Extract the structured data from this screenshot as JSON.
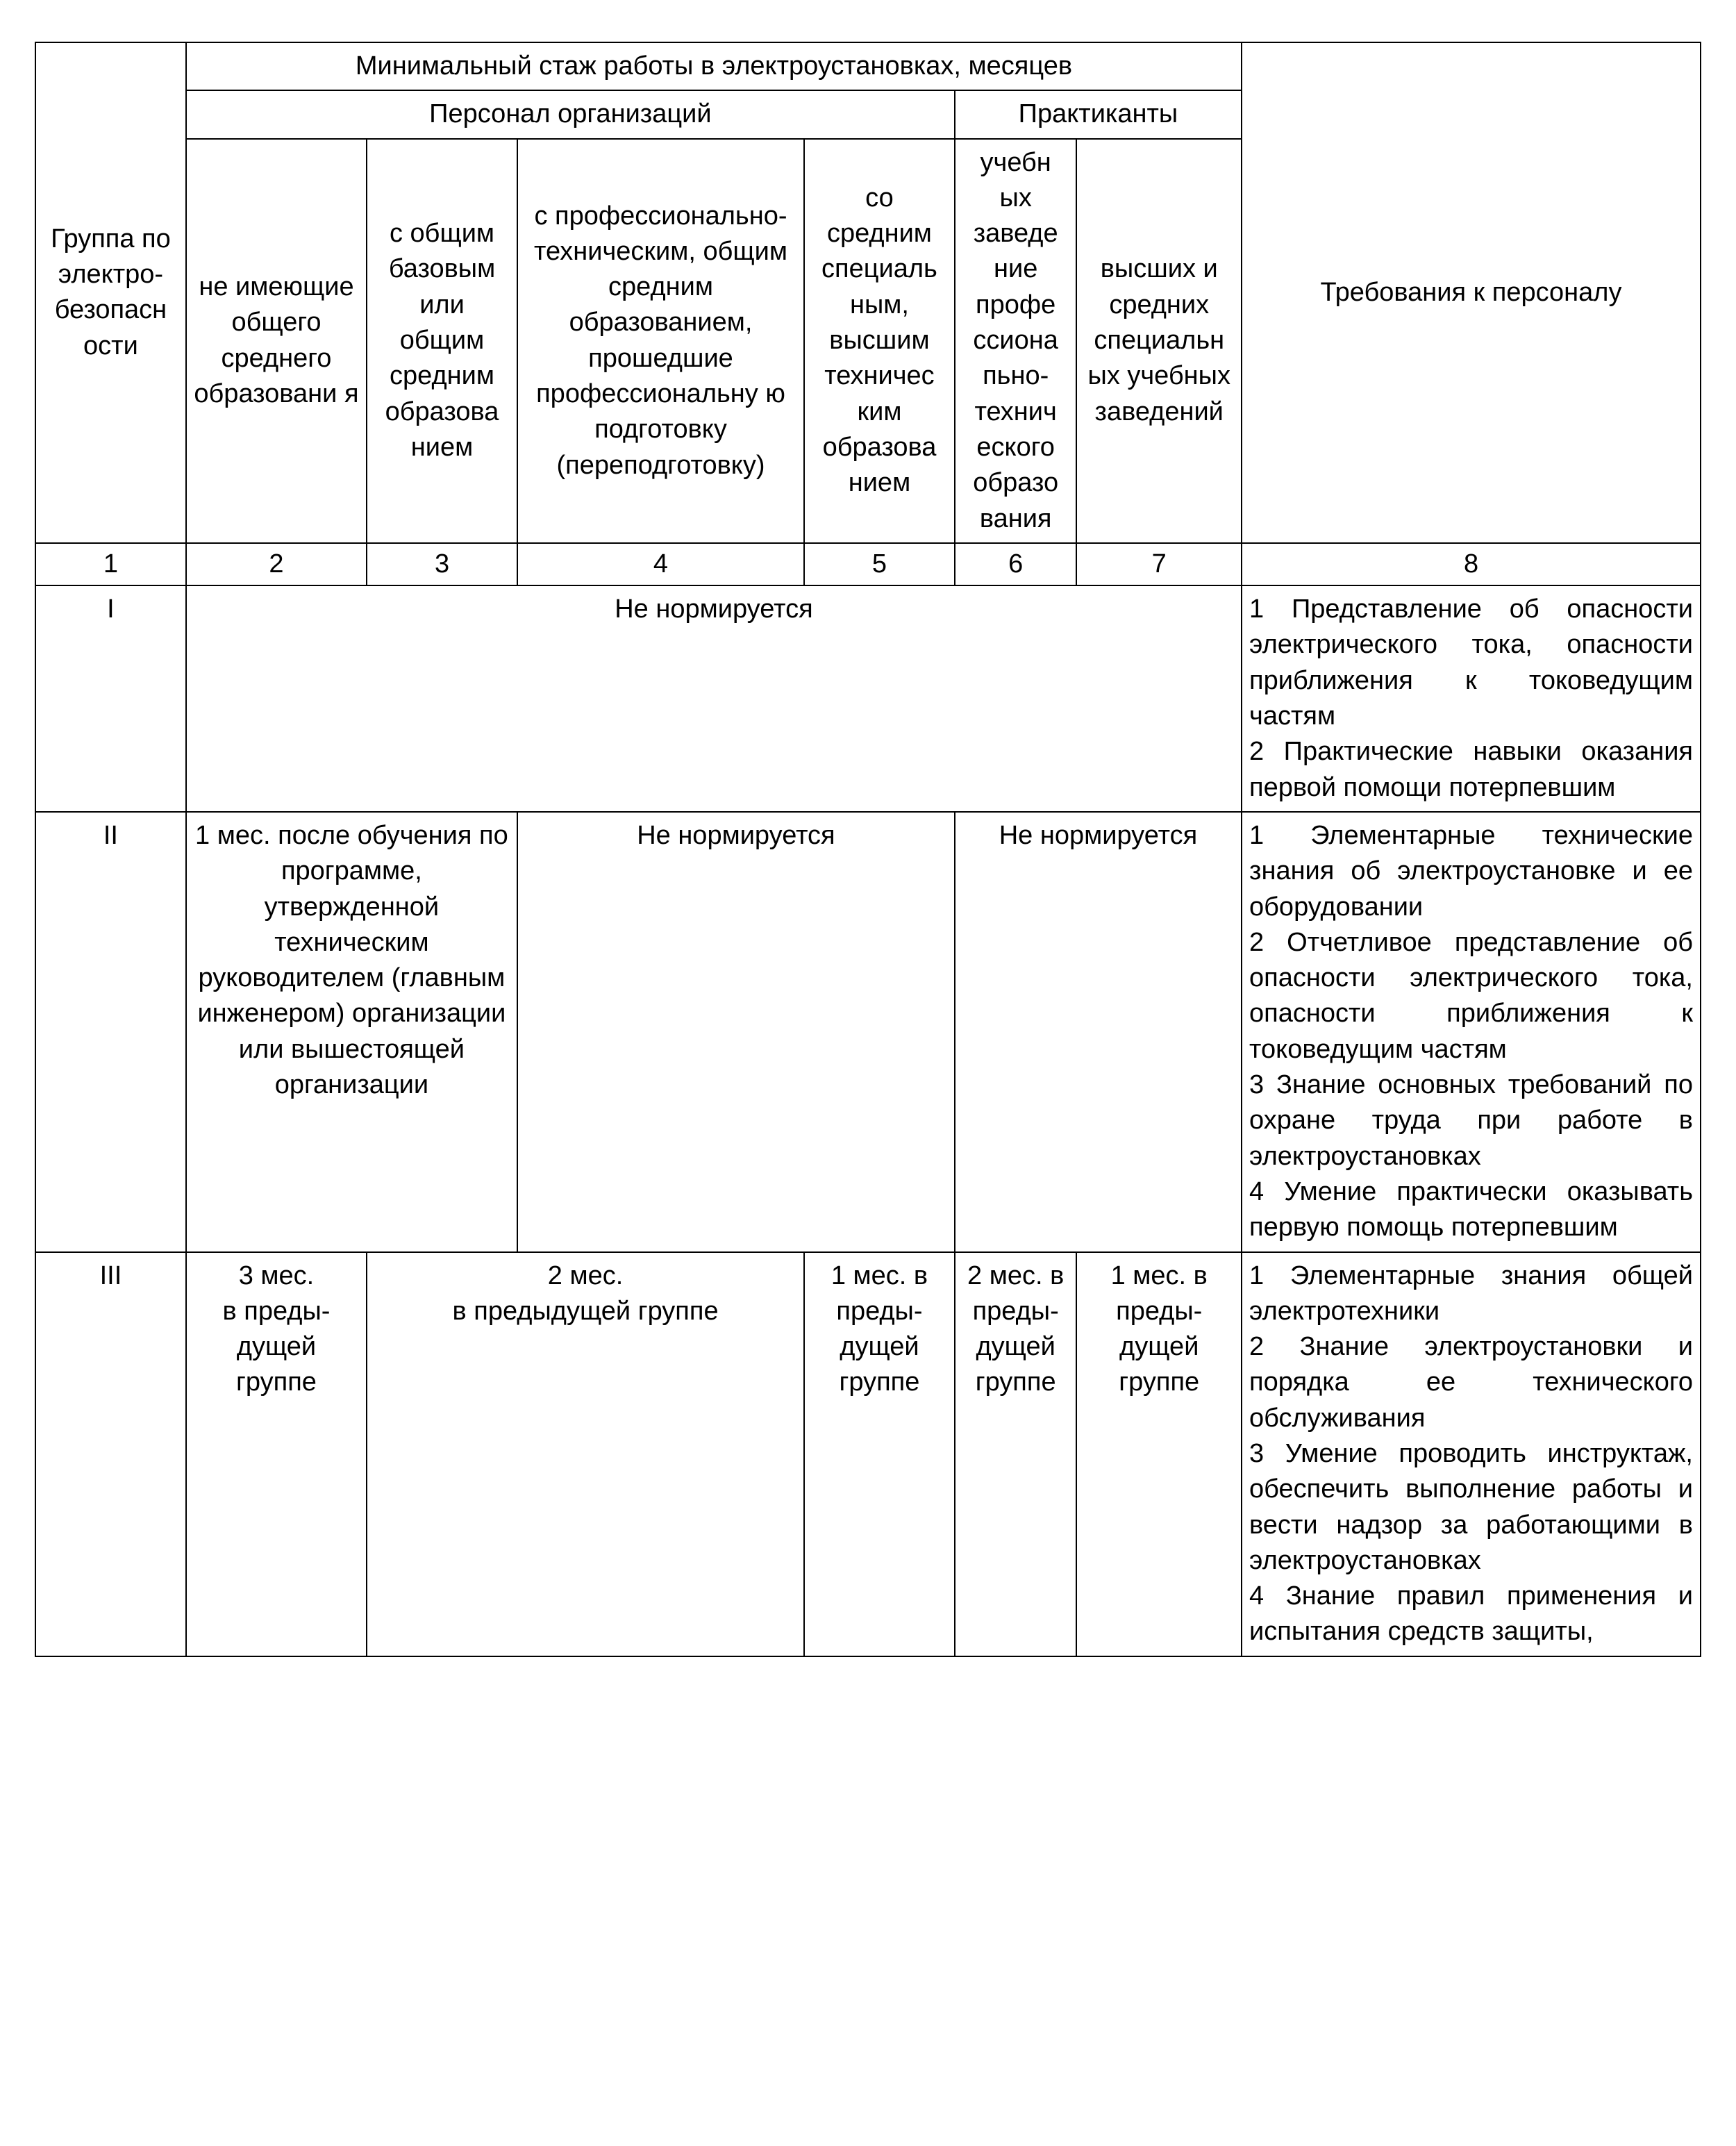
{
  "table": {
    "colors": {
      "border": "#000000",
      "text": "#000000",
      "background": "#ffffff"
    },
    "font": {
      "family": "Arial",
      "size_pt": 11
    },
    "columns": [
      "c1",
      "c2",
      "c3",
      "c4",
      "c5",
      "c6",
      "c7",
      "c8"
    ],
    "header": {
      "exp_title": "Минимальный стаж работы в электроустановках, месяцев",
      "org_title": "Персонал организаций",
      "trainee_title": "Практиканты",
      "col1": "Группа по электро-безопасн ости",
      "col2": "не имеющие общего среднего образовани я",
      "col3": "с общим базовым или общим средним образова нием",
      "col4": "с профессионально-техническим, общим средним образованием, прошедшие профессиональну ю подготовку (переподготовку)",
      "col5": "со средним специаль ным, высшим техничес ким образова нием",
      "col6": "учебн ых заведе ние профе ссиона пьно-технич еского образо вания",
      "col7": "высших и средних специальн ых учебных заведений",
      "col8": "Требования к персоналу",
      "numbers": [
        "1",
        "2",
        "3",
        "4",
        "5",
        "6",
        "7",
        "8"
      ]
    },
    "rows": [
      {
        "group": "I",
        "exp_all": "Не нормируется",
        "req": "1 Представление об опасности электрического тока, опасности приближения к токоведущим частям\n2 Практические навыки оказания первой помощи потерпевшим"
      },
      {
        "group": "II",
        "exp_23": "1 мес. после обучения по программе, утвержденной техническим руководителем (главным инженером) организации или вышестоящей организации",
        "exp_45": "Не нормируется",
        "exp_67": "Не нормируется",
        "req": "1 Элементарные технические знания об электроустановке и ее оборудовании\n2 Отчетливое представление об опасности электрического тока, опасности приближения к токоведущим частям\n3 Знание основных требований по охране труда при работе в электроустановках\n4 Умение практически оказывать первую помощь потерпевшим"
      },
      {
        "group": "III",
        "exp_2": "3 мес.\nв преды-дущей группе",
        "exp_34": "2 мес.\nв предыдущей группе",
        "exp_5": "1 мес. в преды-дущей группе",
        "exp_6": "2 мес. в преды-дущей группе",
        "exp_7": "1 мес. в преды-дущей группе",
        "req": "1 Элементарные знания общей электротехники\n2 Знание электроустановки и порядка ее технического обслуживания\n3 Умение проводить инструктаж, обеспечить выполнение работы и вести надзор за работающими в электроустановках\n4 Знание правил применения и испытания средств защиты,"
      }
    ]
  }
}
